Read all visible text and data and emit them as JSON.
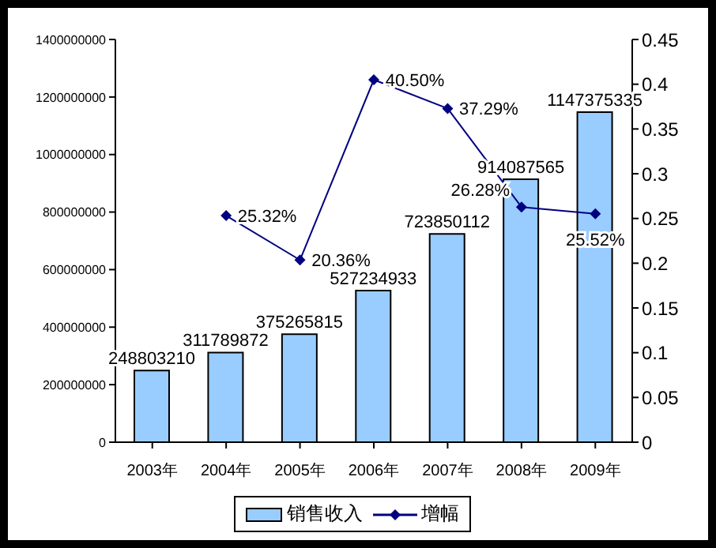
{
  "chart_data": {
    "type": "bar",
    "categories": [
      "2003年",
      "2004年",
      "2005年",
      "2006年",
      "2007年",
      "2008年",
      "2009年"
    ],
    "series": [
      {
        "name": "销售收入",
        "color": "#99ccff",
        "values": [
          248803210,
          311789872,
          375265815,
          527234933,
          723850112,
          914087565,
          1147375335
        ],
        "value_labels": [
          "248803210",
          "311789872",
          "375265815",
          "527234933",
          "723850112",
          "914087565",
          "1147375335"
        ]
      },
      {
        "name": "增幅",
        "type": "line",
        "axis": "y2",
        "color": "#000080",
        "values": [
          null,
          0.2532,
          0.2036,
          0.405,
          0.3729,
          0.2628,
          0.2552
        ],
        "value_labels": [
          null,
          "25.32%",
          "20.36%",
          "40.50%",
          "37.29%",
          "26.28%",
          "25.52%"
        ]
      }
    ],
    "ylim": [
      0,
      1400000000
    ],
    "yticks": [
      0,
      200000000,
      400000000,
      600000000,
      800000000,
      1000000000,
      1200000000,
      1400000000
    ],
    "y2lim": [
      0,
      0.45
    ],
    "y2ticks": [
      0,
      0.05,
      0.1,
      0.15,
      0.2,
      0.25,
      0.3,
      0.35,
      0.4,
      0.45
    ],
    "grid": false,
    "legend": "bottom",
    "marker": "diamond",
    "line_style": "solid"
  }
}
